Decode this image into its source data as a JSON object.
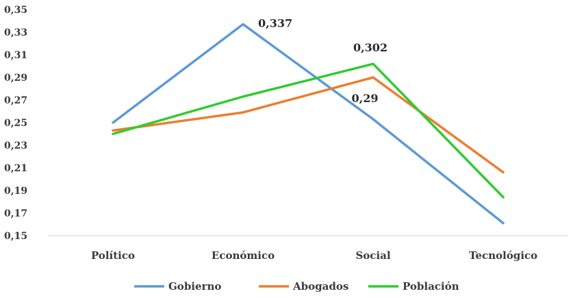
{
  "chart_data": {
    "type": "line",
    "categories": [
      "Político",
      "Económico",
      "Social",
      "Tecnológico"
    ],
    "series": [
      {
        "name": "Gobierno",
        "color": "#5b9bd5",
        "values": [
          0.25,
          0.337,
          0.253,
          0.161
        ]
      },
      {
        "name": "Abogados",
        "color": "#ed7d31",
        "values": [
          0.243,
          0.259,
          0.29,
          0.206
        ]
      },
      {
        "name": "Población",
        "color": "#2ecc2e",
        "values": [
          0.24,
          0.273,
          0.302,
          0.184
        ]
      }
    ],
    "yticks": [
      "0,35",
      "0,33",
      "0,31",
      "0,29",
      "0,27",
      "0,25",
      "0,23",
      "0,21",
      "0,19",
      "0,17",
      "0,15"
    ],
    "ylim": [
      0.15,
      0.35
    ],
    "data_labels": [
      {
        "series": "Gobierno",
        "category": "Económico",
        "text": "0,337"
      },
      {
        "series": "Población",
        "category": "Social",
        "text": "0,302"
      },
      {
        "series": "Abogados",
        "category": "Social",
        "text": "0,29"
      }
    ],
    "legend_position": "bottom",
    "grid": false
  }
}
